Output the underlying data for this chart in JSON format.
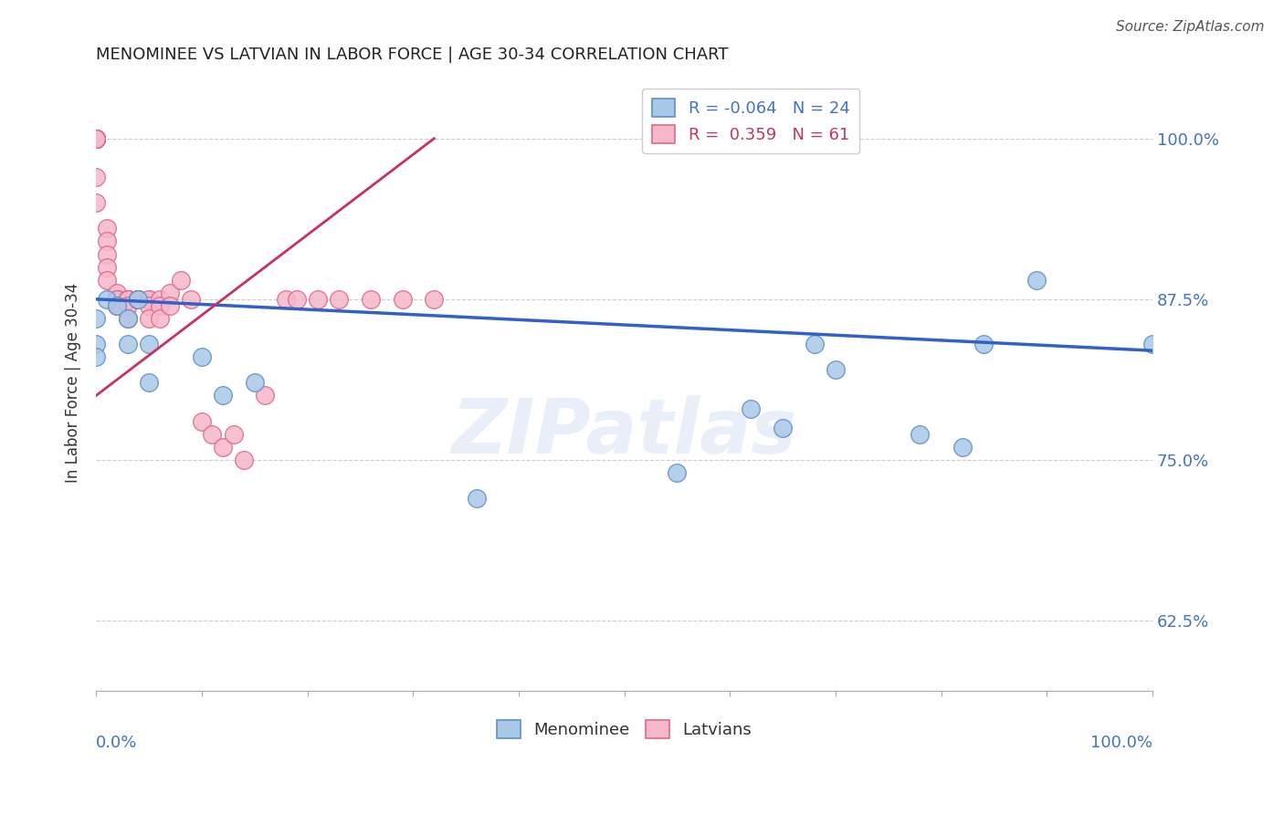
{
  "title": "MENOMINEE VS LATVIAN IN LABOR FORCE | AGE 30-34 CORRELATION CHART",
  "source": "Source: ZipAtlas.com",
  "ylabel": "In Labor Force | Age 30-34",
  "ytick_labels": [
    "62.5%",
    "75.0%",
    "87.5%",
    "100.0%"
  ],
  "ytick_values": [
    0.625,
    0.75,
    0.875,
    1.0
  ],
  "xlim": [
    0.0,
    1.0
  ],
  "ylim": [
    0.57,
    1.05
  ],
  "legend_r_menominee": "-0.064",
  "legend_n_menominee": "24",
  "legend_r_latvian": "0.359",
  "legend_n_latvian": "61",
  "menominee_color": "#a8c8e8",
  "latvian_color": "#f5b8cb",
  "menominee_edge": "#6090c8",
  "latvian_edge": "#e06888",
  "trend_menominee_color": "#3060c8",
  "trend_latvian_color": "#c83060",
  "watermark": "ZIPatlas",
  "menominee_x": [
    0.0,
    0.0,
    0.0,
    0.01,
    0.02,
    0.03,
    0.03,
    0.04,
    0.05,
    0.05,
    0.1,
    0.12,
    0.15,
    0.36,
    0.55,
    0.62,
    0.65,
    0.68,
    0.7,
    0.78,
    0.82,
    0.84,
    0.89,
    1.0
  ],
  "menominee_y": [
    0.86,
    0.84,
    0.83,
    0.875,
    0.87,
    0.86,
    0.84,
    0.875,
    0.84,
    0.81,
    0.83,
    0.8,
    0.81,
    0.72,
    0.74,
    0.79,
    0.775,
    0.84,
    0.82,
    0.77,
    0.76,
    0.84,
    0.89,
    0.84
  ],
  "latvian_x": [
    0.0,
    0.0,
    0.0,
    0.0,
    0.0,
    0.0,
    0.0,
    0.0,
    0.0,
    0.0,
    0.0,
    0.0,
    0.0,
    0.0,
    0.01,
    0.01,
    0.01,
    0.01,
    0.01,
    0.02,
    0.02,
    0.02,
    0.02,
    0.02,
    0.02,
    0.03,
    0.03,
    0.03,
    0.03,
    0.03,
    0.03,
    0.03,
    0.04,
    0.04,
    0.04,
    0.04,
    0.04,
    0.05,
    0.05,
    0.05,
    0.05,
    0.06,
    0.06,
    0.06,
    0.07,
    0.07,
    0.08,
    0.09,
    0.1,
    0.11,
    0.12,
    0.13,
    0.14,
    0.16,
    0.18,
    0.19,
    0.21,
    0.23,
    0.26,
    0.29,
    0.32
  ],
  "latvian_y": [
    1.0,
    1.0,
    1.0,
    1.0,
    1.0,
    1.0,
    1.0,
    1.0,
    1.0,
    1.0,
    1.0,
    1.0,
    0.97,
    0.95,
    0.93,
    0.92,
    0.91,
    0.9,
    0.89,
    0.88,
    0.875,
    0.875,
    0.875,
    0.87,
    0.87,
    0.875,
    0.875,
    0.875,
    0.875,
    0.875,
    0.87,
    0.86,
    0.875,
    0.875,
    0.875,
    0.875,
    0.875,
    0.875,
    0.875,
    0.87,
    0.86,
    0.875,
    0.87,
    0.86,
    0.88,
    0.87,
    0.89,
    0.875,
    0.78,
    0.77,
    0.76,
    0.77,
    0.75,
    0.8,
    0.875,
    0.875,
    0.875,
    0.875,
    0.875,
    0.875,
    0.875
  ],
  "trend_menominee_x0": 0.0,
  "trend_menominee_y0": 0.875,
  "trend_menominee_x1": 1.0,
  "trend_menominee_y1": 0.835,
  "trend_latvian_x0": 0.0,
  "trend_latvian_y0": 0.8,
  "trend_latvian_x1": 0.32,
  "trend_latvian_y1": 1.0
}
